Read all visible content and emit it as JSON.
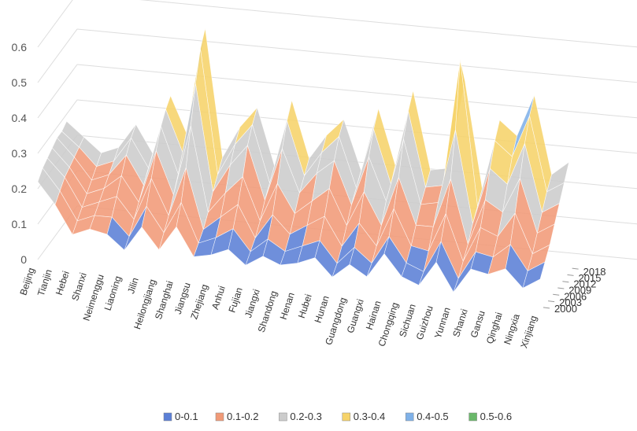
{
  "chart_data": {
    "type": "surface",
    "title": "",
    "xlabel": "",
    "ylabel": "",
    "zlim": [
      0,
      0.6
    ],
    "z_ticks": [
      "0",
      "0.1",
      "0.2",
      "0.3",
      "0.4",
      "0.5",
      "0.6"
    ],
    "provinces": [
      "Beijing",
      "Tianjin",
      "Hebei",
      "Shanxi",
      "Neimenggu",
      "Liaoning",
      "Jilin",
      "Heilongjiang",
      "Shanghai",
      "Jiangsu",
      "Zhejiang",
      "Anhui",
      "Fujian",
      "Jiangxi",
      "Shandong",
      "Henan",
      "Hubei",
      "Hunan",
      "Guangdong",
      "Guangxi",
      "Hainan",
      "Chongqing",
      "Sichuan",
      "Guizhou",
      "Yunnan",
      "Shanxi",
      "Gansu",
      "Qinghai",
      "Ningxia",
      "Xinjiang"
    ],
    "years": [
      "2000",
      "2003",
      "2006",
      "2009",
      "2012",
      "2015",
      "2018"
    ],
    "legend": [
      {
        "label": "0-0.1",
        "color": "#5b7fd6"
      },
      {
        "label": "0.1-0.2",
        "color": "#f19a77"
      },
      {
        "label": "0.2-0.3",
        "color": "#cccccc"
      },
      {
        "label": "0.3-0.4",
        "color": "#f6d36a"
      },
      {
        "label": "0.4-0.5",
        "color": "#7fb1e8"
      },
      {
        "label": "0.5-0.6",
        "color": "#6ab86a"
      }
    ],
    "values_by_year": [
      [
        0.22,
        0.16,
        0.08,
        0.1,
        0.09,
        0.05,
        0.12,
        0.06,
        0.13,
        0.05,
        0.06,
        0.08,
        0.04,
        0.07,
        0.05,
        0.06,
        0.08,
        0.03,
        0.07,
        0.04,
        0.11,
        0.05,
        0.03,
        0.1,
        0.02,
        0.09,
        0.08,
        0.1,
        0.05,
        0.08
      ],
      [
        0.24,
        0.18,
        0.1,
        0.12,
        0.12,
        0.07,
        0.16,
        0.09,
        0.18,
        0.07,
        0.09,
        0.12,
        0.06,
        0.1,
        0.07,
        0.09,
        0.11,
        0.05,
        0.1,
        0.06,
        0.14,
        0.07,
        0.05,
        0.14,
        0.04,
        0.12,
        0.11,
        0.15,
        0.08,
        0.11
      ],
      [
        0.25,
        0.2,
        0.12,
        0.14,
        0.16,
        0.1,
        0.22,
        0.12,
        0.26,
        0.09,
        0.13,
        0.17,
        0.08,
        0.15,
        0.1,
        0.13,
        0.16,
        0.08,
        0.15,
        0.09,
        0.2,
        0.1,
        0.09,
        0.2,
        0.07,
        0.17,
        0.15,
        0.22,
        0.11,
        0.14
      ],
      [
        0.26,
        0.21,
        0.14,
        0.16,
        0.2,
        0.13,
        0.28,
        0.16,
        0.36,
        0.12,
        0.18,
        0.23,
        0.11,
        0.22,
        0.14,
        0.18,
        0.22,
        0.12,
        0.22,
        0.13,
        0.27,
        0.14,
        0.14,
        0.28,
        0.1,
        0.23,
        0.2,
        0.3,
        0.15,
        0.18
      ],
      [
        0.27,
        0.22,
        0.16,
        0.18,
        0.24,
        0.16,
        0.33,
        0.2,
        0.46,
        0.16,
        0.24,
        0.3,
        0.15,
        0.3,
        0.18,
        0.24,
        0.28,
        0.16,
        0.3,
        0.18,
        0.36,
        0.18,
        0.19,
        0.4,
        0.14,
        0.3,
        0.26,
        0.38,
        0.19,
        0.22
      ],
      [
        0.27,
        0.23,
        0.18,
        0.2,
        0.27,
        0.19,
        0.36,
        0.24,
        0.54,
        0.19,
        0.28,
        0.34,
        0.18,
        0.36,
        0.21,
        0.28,
        0.33,
        0.19,
        0.36,
        0.21,
        0.42,
        0.21,
        0.22,
        0.58,
        0.17,
        0.36,
        0.32,
        0.44,
        0.23,
        0.26
      ],
      [
        0.28,
        0.24,
        0.2,
        0.22,
        0.29,
        0.21,
        0.38,
        0.27,
        0.58,
        0.22,
        0.31,
        0.37,
        0.21,
        0.4,
        0.24,
        0.31,
        0.36,
        0.22,
        0.4,
        0.24,
        0.46,
        0.24,
        0.25,
        0.5,
        0.2,
        0.4,
        0.36,
        0.48,
        0.26,
        0.3
      ]
    ]
  }
}
